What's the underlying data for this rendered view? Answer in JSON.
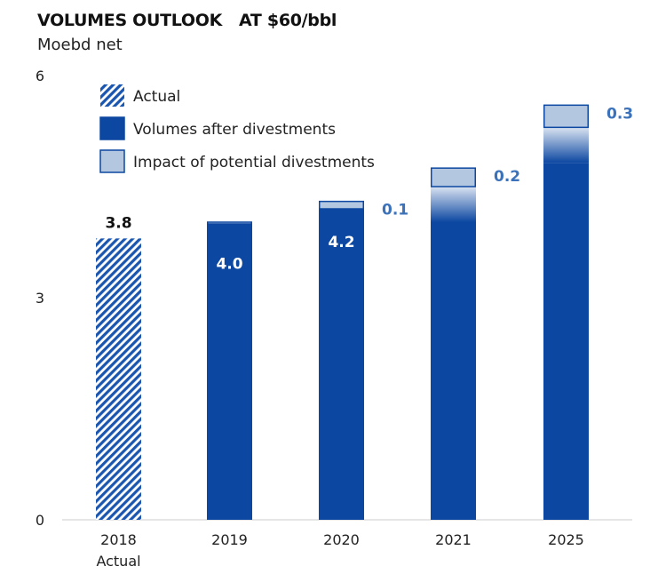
{
  "chart_data": {
    "type": "bar",
    "stacked": true,
    "title": "VOLUMES OUTLOOK   AT $60/bbl",
    "subtitle": "Moebd net",
    "categories": [
      "2018",
      "2019",
      "2020",
      "2021",
      "2025"
    ],
    "category_sublabels": [
      "Actual",
      "",
      "",
      "",
      ""
    ],
    "ylim": [
      0,
      6
    ],
    "yticks": [
      "0",
      "3",
      "6"
    ],
    "grid": false,
    "legend_position": "top-left",
    "legend": [
      "Actual",
      "Volumes after divestments",
      "Impact of potential divestments"
    ],
    "series": [
      {
        "name": "Actual",
        "values": [
          3.8,
          null,
          null,
          null,
          null
        ],
        "labels": [
          "3.8",
          "",
          "",
          "",
          ""
        ]
      },
      {
        "name": "Volumes after divestments",
        "values": [
          null,
          4.0,
          4.2,
          4.5,
          5.3
        ],
        "labels": [
          "",
          "4.0",
          "4.2",
          "",
          ""
        ]
      },
      {
        "name": "Impact of potential divestments",
        "values": [
          null,
          0.02,
          0.1,
          0.25,
          0.3
        ],
        "labels": [
          "",
          "",
          "0.1",
          "0.2",
          "0.3"
        ]
      }
    ],
    "colors": {
      "actual": "#0c47a1",
      "volumes": "#0c47a1",
      "impact": "#b4c7e1",
      "impact_label": "#3b72b9"
    }
  }
}
